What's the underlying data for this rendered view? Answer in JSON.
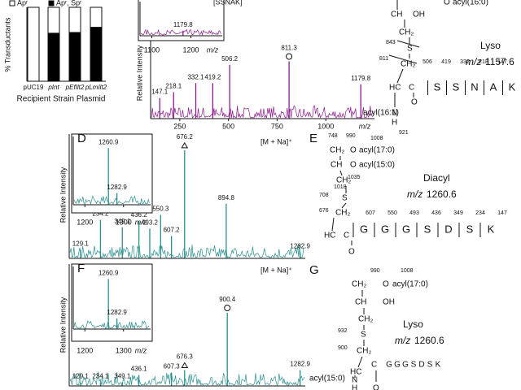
{
  "bar_panel": {
    "y_label": "% Transductants",
    "x_label": "Recipient Strain Plasmid",
    "categories": [
      "pUC19",
      "pInt",
      "pEfIlt2",
      "pLmIlt2"
    ],
    "ylim": [
      0,
      100
    ],
    "series": [
      {
        "name": "Apʳ, Spʳ",
        "color": "#000000",
        "values": [
          0,
          65,
          66,
          73
        ]
      },
      {
        "name": "Apʳ",
        "color": "#ffffff",
        "values": [
          100,
          35,
          34,
          27
        ]
      }
    ]
  },
  "spectra": [
    {
      "y_label": "Relative Intensity",
      "x_label": "m/z",
      "annotation": "[SSNAK]",
      "color": "#8b1a8b",
      "xlim": [
        100,
        1250
      ],
      "ylim": [
        0,
        100
      ],
      "xticks": [
        250,
        500,
        750,
        1000
      ],
      "peaks": [
        {
          "mz": 147.1,
          "intensity": 18
        },
        {
          "mz": 218.1,
          "intensity": 23
        },
        {
          "mz": 332.1,
          "intensity": 31
        },
        {
          "mz": 419.2,
          "intensity": 31
        },
        {
          "mz": 506.2,
          "intensity": 47
        },
        {
          "mz": 811.3,
          "intensity": 50,
          "marker": "circle"
        },
        {
          "mz": 1179.8,
          "intensity": 30
        }
      ],
      "inset": {
        "xlim": [
          1070,
          1280
        ],
        "ylim": [
          0,
          100
        ],
        "xticks": [
          1100,
          1200
        ],
        "x_label": "m/z",
        "peaks": [
          {
            "mz": 1179.8,
            "intensity": 15
          }
        ]
      }
    },
    {
      "letter": "D",
      "y_label": "Relative Intensity",
      "annotation": "[M + Na]⁺",
      "color": "#2a8f8f",
      "xlim": [
        70,
        1310
      ],
      "ylim": [
        0,
        100
      ],
      "peaks": [
        {
          "mz": 129.1,
          "intensity": 7
        },
        {
          "mz": 234.2,
          "intensity": 31
        },
        {
          "mz": 349.1,
          "intensity": 25
        },
        {
          "mz": 436.2,
          "intensity": 30
        },
        {
          "mz": 493.2,
          "intensity": 24
        },
        {
          "mz": 550.3,
          "intensity": 35
        },
        {
          "mz": 607.2,
          "intensity": 18
        },
        {
          "mz": 676.2,
          "intensity": 87,
          "marker": "triangle"
        },
        {
          "mz": 894.8,
          "intensity": 44
        },
        {
          "mz": 1282.9,
          "intensity": 5
        }
      ],
      "inset": {
        "xlim": [
          1170,
          1370
        ],
        "ylim": [
          0,
          100
        ],
        "xticks": [
          1200,
          1300
        ],
        "x_label": "m/z",
        "peaks": [
          {
            "mz": 1260.9,
            "intensity": 83
          },
          {
            "mz": 1282.9,
            "intensity": 17
          }
        ]
      }
    },
    {
      "letter": "F",
      "y_label": "Relative Intensity",
      "annotation": "[M + Na]⁺",
      "color": "#2a8f8f",
      "xlim": [
        70,
        1310
      ],
      "ylim": [
        0,
        100
      ],
      "peaks": [
        {
          "mz": 129.1,
          "intensity": 3
        },
        {
          "mz": 234.1,
          "intensity": 3
        },
        {
          "mz": 349.1,
          "intensity": 3
        },
        {
          "mz": 436.1,
          "intensity": 9
        },
        {
          "mz": 607.3,
          "intensity": 11
        },
        {
          "mz": 676.3,
          "intensity": 13,
          "marker": "triangle"
        },
        {
          "mz": 900.4,
          "intensity": 60,
          "marker": "circle"
        },
        {
          "mz": 1282.9,
          "intensity": 13
        }
      ],
      "inset": {
        "xlim": [
          1170,
          1370
        ],
        "ylim": [
          0,
          100
        ],
        "xticks": [
          1200,
          1300
        ],
        "x_label": "m/z",
        "peaks": [
          {
            "mz": 1260.9,
            "intensity": 80
          },
          {
            "mz": 1282.9,
            "intensity": 17
          }
        ]
      }
    }
  ],
  "structures": [
    {
      "kind": "Lyso",
      "mass_label": "m/z",
      "mass": 1157.6,
      "labels": [
        "O",
        "acyl(16:0)",
        "CH",
        "OH",
        "CH₂",
        "S",
        843,
        811,
        "CH₂",
        "HC",
        "C",
        "O",
        "acyl(16:1)",
        "N",
        "H",
        921
      ],
      "sequence": [
        "S",
        "S",
        "N",
        "A",
        "K"
      ],
      "fragments": [
        506,
        419,
        332,
        218,
        147
      ]
    },
    {
      "letter": "E",
      "kind": "Diacyl",
      "mass_label": "m/z",
      "mass": 1260.6,
      "labels": [
        748,
        990,
        1008,
        "CH₂",
        "O",
        "acyl(17:0)",
        "CH",
        "O",
        "acyl(15:0)",
        1035,
        1018,
        "CH₂",
        "S",
        708,
        676,
        "CH₂",
        "HC",
        "C",
        "O"
      ],
      "sequence": [
        "G",
        "G",
        "G",
        "S",
        "D",
        "S",
        "K"
      ],
      "fragments": [
        607,
        550,
        493,
        436,
        349,
        234,
        147
      ]
    },
    {
      "letter": "G",
      "kind": "Lyso",
      "mass_label": "m/z",
      "mass": 1260.6,
      "labels": [
        990,
        1008,
        "CH₂",
        "O",
        "acyl(17:0)",
        "CH",
        "OH",
        "CH₂",
        "S",
        932,
        900,
        "CH₂",
        "HC",
        "C",
        "O",
        "acyl(15:0)",
        "N",
        "H"
      ],
      "sequence": [
        "G",
        "G",
        "G",
        "S",
        "D",
        "S",
        "K"
      ]
    }
  ]
}
